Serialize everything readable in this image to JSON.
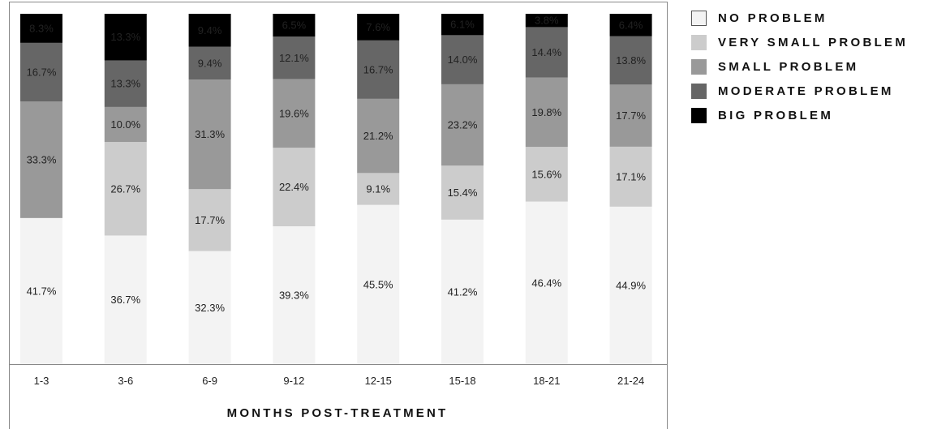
{
  "chart_data": {
    "type": "bar",
    "stacked": true,
    "title": "",
    "xlabel": "MONTHS POST-TREATMENT",
    "ylabel": "",
    "ylim": [
      0,
      100
    ],
    "grid": false,
    "legend_position": "right",
    "categories": [
      "1-3",
      "3-6",
      "6-9",
      "9-12",
      "12-15",
      "15-18",
      "18-21",
      "21-24"
    ],
    "series": [
      {
        "name": "NO PROBLEM",
        "color": "#f3f3f3",
        "values": [
          41.7,
          36.7,
          32.3,
          39.3,
          45.5,
          41.2,
          46.4,
          44.9
        ],
        "labels": [
          "41.7%",
          "36.7%",
          "32.3%",
          "39.3%",
          "45.5%",
          "41.2%",
          "46.4%",
          "44.9%"
        ]
      },
      {
        "name": "VERY SMALL PROBLEM",
        "color": "#cccccc",
        "values": [
          0,
          26.7,
          17.7,
          22.4,
          9.1,
          15.4,
          15.6,
          17.1
        ],
        "labels": [
          "",
          "26.7%",
          "17.7%",
          "22.4%",
          "9.1%",
          "15.4%",
          "15.6%",
          "17.1%"
        ]
      },
      {
        "name": "SMALL PROBLEM",
        "color": "#999999",
        "values": [
          33.3,
          10.0,
          31.3,
          19.6,
          21.2,
          23.2,
          19.8,
          17.7
        ],
        "labels": [
          "33.3%",
          "10.0%",
          "31.3%",
          "19.6%",
          "21.2%",
          "23.2%",
          "19.8%",
          "17.7%"
        ]
      },
      {
        "name": "MODERATE PROBLEM",
        "color": "#666666",
        "values": [
          16.7,
          13.3,
          9.4,
          12.1,
          16.7,
          14.0,
          14.4,
          13.8
        ],
        "labels": [
          "16.7%",
          "13.3%",
          "9.4%",
          "12.1%",
          "16.7%",
          "14.0%",
          "14.4%",
          "13.8%"
        ]
      },
      {
        "name": "BIG PROBLEM",
        "color": "#000000",
        "values": [
          8.3,
          13.3,
          9.4,
          6.5,
          7.6,
          6.1,
          3.8,
          6.4
        ],
        "labels": [
          "8.3%",
          "13.3%",
          "9.4%",
          "6.5%",
          "7.6%",
          "6.1%",
          "3.8%",
          "6.4%"
        ]
      }
    ]
  }
}
